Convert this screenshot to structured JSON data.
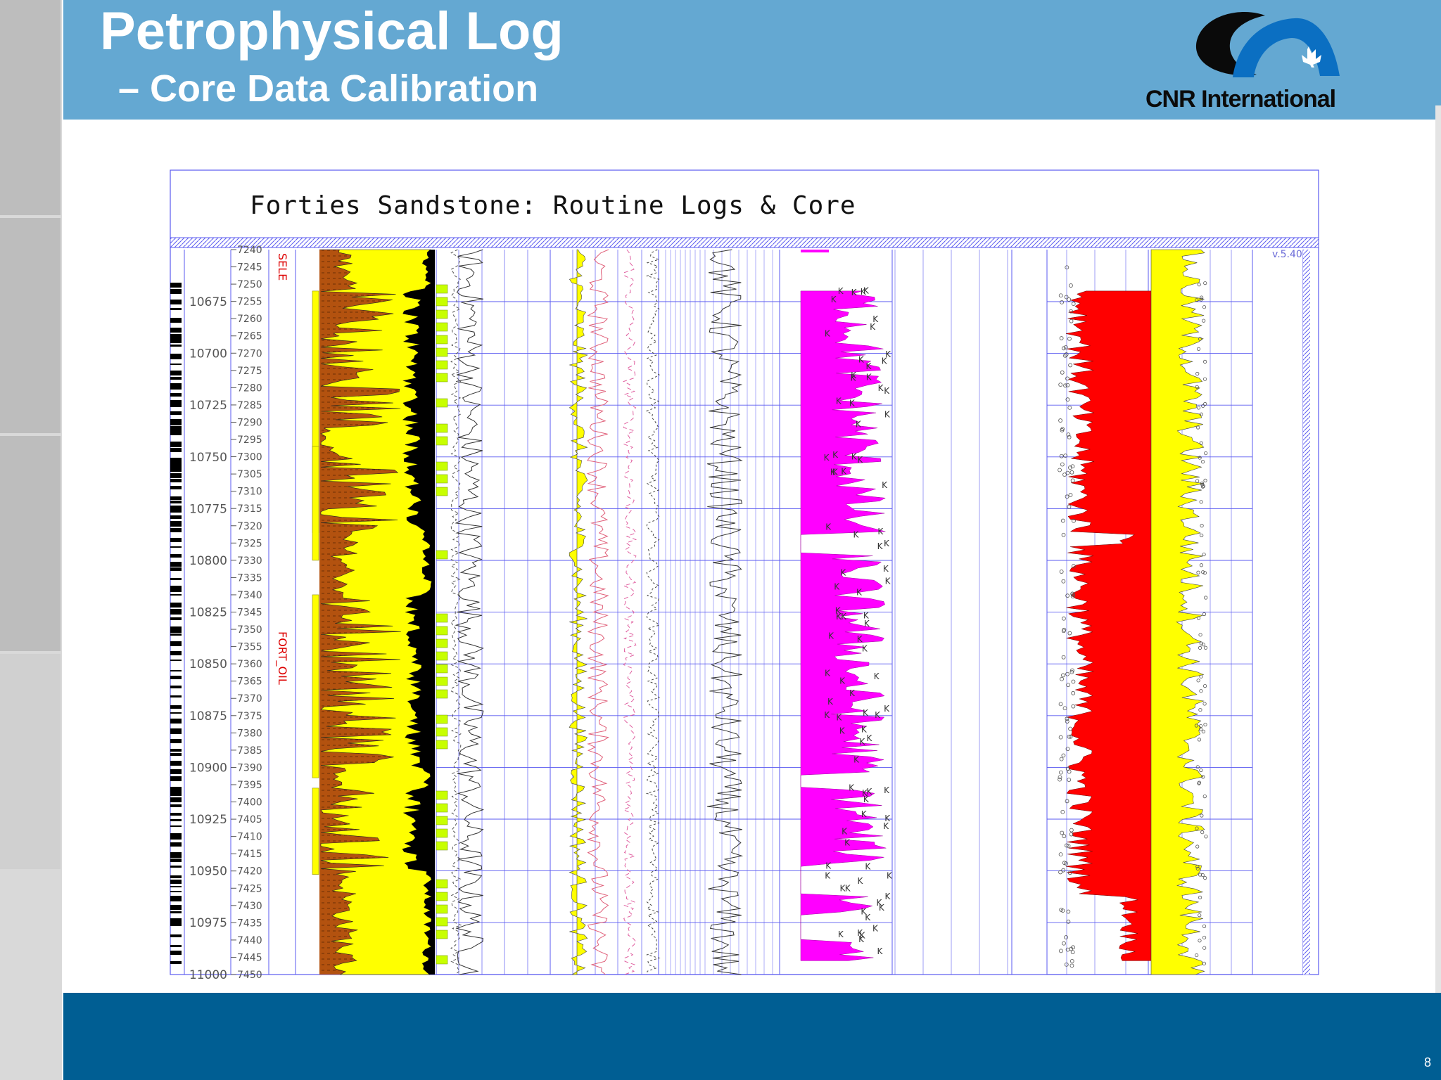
{
  "slide": {
    "title_line1": "Petrophysical Log",
    "title_line2": "– Core Data Calibration",
    "logo_text": "CNR International",
    "page_number": "8",
    "colors": {
      "header": "#64a8d2",
      "footer": "#005e93",
      "sidebar": "#d9d9d9",
      "logo_blue": "#0b6fc2"
    }
  },
  "chart_data": {
    "type": "well-log",
    "title": "Forties Sandstone: Routine Logs & Core",
    "version_label": "v.5.40",
    "md_ticks": [
      "10675",
      "10700",
      "10725",
      "10750",
      "10775",
      "10800",
      "10825",
      "10850",
      "10875",
      "10900",
      "10925",
      "10950",
      "10975",
      "11000"
    ],
    "tvd_ticks": [
      "7240",
      "7245",
      "7250",
      "7255",
      "7260",
      "7265",
      "7270",
      "7275",
      "7280",
      "7285",
      "7290",
      "7295",
      "7300",
      "7305",
      "7310",
      "7315",
      "7320",
      "7325",
      "7330",
      "7335",
      "7340",
      "7345",
      "7350",
      "7355",
      "7360",
      "7365",
      "7370",
      "7375",
      "7380",
      "7385",
      "7390",
      "7395",
      "7400",
      "7405",
      "7410",
      "7415",
      "7420",
      "7425",
      "7430",
      "7435",
      "7440",
      "7445",
      "7450"
    ],
    "zones": [
      {
        "name": "SELE",
        "from": 7240,
        "to": 7250
      },
      {
        "name": "FORT_OIL",
        "from": 7250,
        "to": 7450
      }
    ],
    "track_colors": {
      "shale": "#b3520f",
      "sand": "#ffff00",
      "gas_black": "#000000",
      "core_marks": "#c8ff00",
      "permeability": "#ff00ff",
      "water_saturation": "#ff0000",
      "hydrocarbon": "#ffff00",
      "grid": "#5a5af0"
    }
  }
}
